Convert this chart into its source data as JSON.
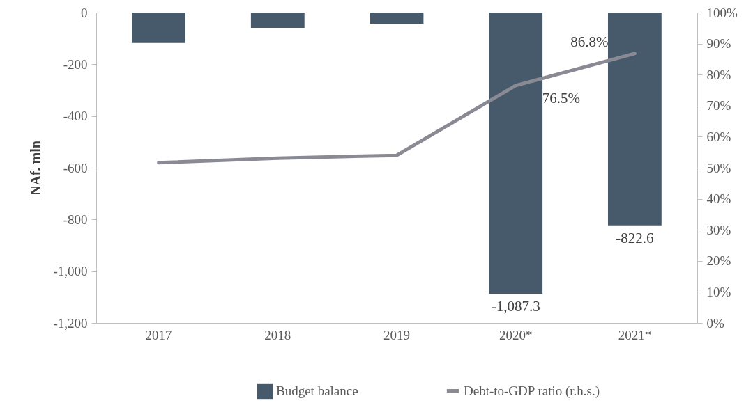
{
  "chart_data": {
    "type": "bar",
    "categories": [
      "2017",
      "2018",
      "2019",
      "2020*",
      "2021*"
    ],
    "ylabel": "NAf. mln",
    "series": [
      {
        "name": "Budget balance",
        "color": "#465a6b",
        "values": [
          -118,
          -59,
          -43,
          -1087.3,
          -822.6
        ],
        "value_labels": [
          null,
          null,
          null,
          "-1,087.3",
          "-822.6"
        ]
      },
      {
        "name": "Debt-to-GDP ratio (r.h.s.)",
        "type": "line",
        "axis": "y2",
        "color": "#8a8a94",
        "values": [
          51.6,
          53.1,
          54.0,
          76.5,
          86.8
        ],
        "value_labels": [
          null,
          null,
          null,
          "76.5%",
          "86.8%"
        ]
      }
    ],
    "ylim": [
      -1200,
      0
    ],
    "yticks": [
      {
        "value": -1200,
        "label": "-1,200"
      },
      {
        "value": -1000,
        "label": "-1,000"
      },
      -800,
      -600,
      -400,
      -200,
      0
    ],
    "y2lim": [
      0,
      100
    ],
    "y2ticks": [
      {
        "value": 0,
        "label": "0%"
      },
      {
        "value": 10,
        "label": "10%"
      },
      {
        "value": 20,
        "label": "20%"
      },
      {
        "value": 30,
        "label": "30%"
      },
      {
        "value": 40,
        "label": "40%"
      },
      {
        "value": 50,
        "label": "50%"
      },
      {
        "value": 60,
        "label": "60%"
      },
      {
        "value": 70,
        "label": "70%"
      },
      {
        "value": 80,
        "label": "80%"
      },
      {
        "value": 90,
        "label": "90%"
      },
      {
        "value": 100,
        "label": "100%"
      }
    ],
    "grid": false,
    "legend": "bottom",
    "marker": "none",
    "line_style": "solid"
  }
}
